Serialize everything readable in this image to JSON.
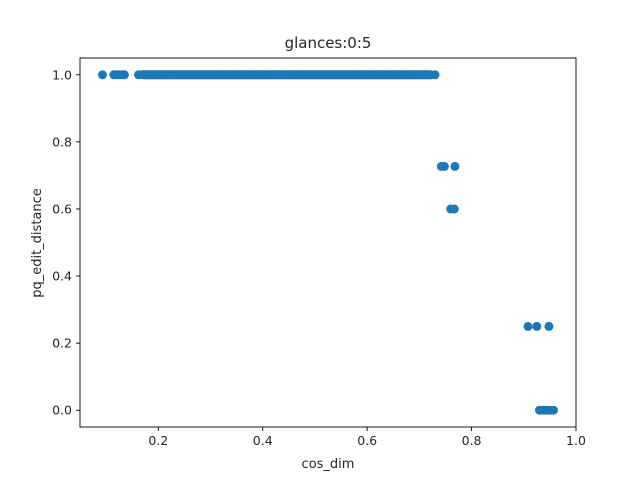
{
  "chart_data": {
    "type": "scatter",
    "title": "glances:0:5",
    "xlabel": "cos_dim",
    "ylabel": "pq_edit_distance",
    "xlim": [
      0.05,
      1.0
    ],
    "ylim": [
      -0.05,
      1.05
    ],
    "xticks": [
      0.2,
      0.4,
      0.6,
      0.8,
      1.0
    ],
    "xtick_labels": [
      "0.2",
      "0.4",
      "0.6",
      "0.8",
      "1.0"
    ],
    "yticks": [
      0.0,
      0.2,
      0.4,
      0.6,
      0.8,
      1.0
    ],
    "ytick_labels": [
      "0.0",
      "0.2",
      "0.4",
      "0.6",
      "0.8",
      "1.0"
    ],
    "grid": false,
    "marker_color": "#1f77b4",
    "series": [
      {
        "x": [
          0.093,
          0.115,
          0.12,
          0.125,
          0.13,
          0.135,
          0.162,
          0.175,
          0.18,
          0.185,
          0.19,
          0.2,
          0.205,
          0.21,
          0.215,
          0.22,
          0.225,
          0.23,
          0.235,
          0.24,
          0.25,
          0.26,
          0.27,
          0.28,
          0.29,
          0.3,
          0.31,
          0.32,
          0.33,
          0.34,
          0.35,
          0.36,
          0.37,
          0.38,
          0.39,
          0.4,
          0.41,
          0.42,
          0.43,
          0.44,
          0.45,
          0.46,
          0.47,
          0.48,
          0.49,
          0.5,
          0.51,
          0.52,
          0.53,
          0.54,
          0.55,
          0.56,
          0.57,
          0.58,
          0.59,
          0.6,
          0.61,
          0.62,
          0.63,
          0.64,
          0.65,
          0.66,
          0.67,
          0.68,
          0.69,
          0.7,
          0.71,
          0.72,
          0.73,
          0.742,
          0.748,
          0.768,
          0.76,
          0.767,
          0.908,
          0.925,
          0.948,
          0.93,
          0.938,
          0.945,
          0.952,
          0.957
        ],
        "y": [
          1,
          1,
          1,
          1,
          1,
          1,
          1,
          1,
          1,
          1,
          1,
          1,
          1,
          1,
          1,
          1,
          1,
          1,
          1,
          1,
          1,
          1,
          1,
          1,
          1,
          1,
          1,
          1,
          1,
          1,
          1,
          1,
          1,
          1,
          1,
          1,
          1,
          1,
          1,
          1,
          1,
          1,
          1,
          1,
          1,
          1,
          1,
          1,
          1,
          1,
          1,
          1,
          1,
          1,
          1,
          1,
          1,
          1,
          1,
          1,
          1,
          1,
          1,
          1,
          1,
          1,
          1,
          1,
          1,
          0.727,
          0.727,
          0.727,
          0.6,
          0.6,
          0.25,
          0.25,
          0.25,
          0,
          0,
          0,
          0,
          0
        ]
      }
    ]
  }
}
